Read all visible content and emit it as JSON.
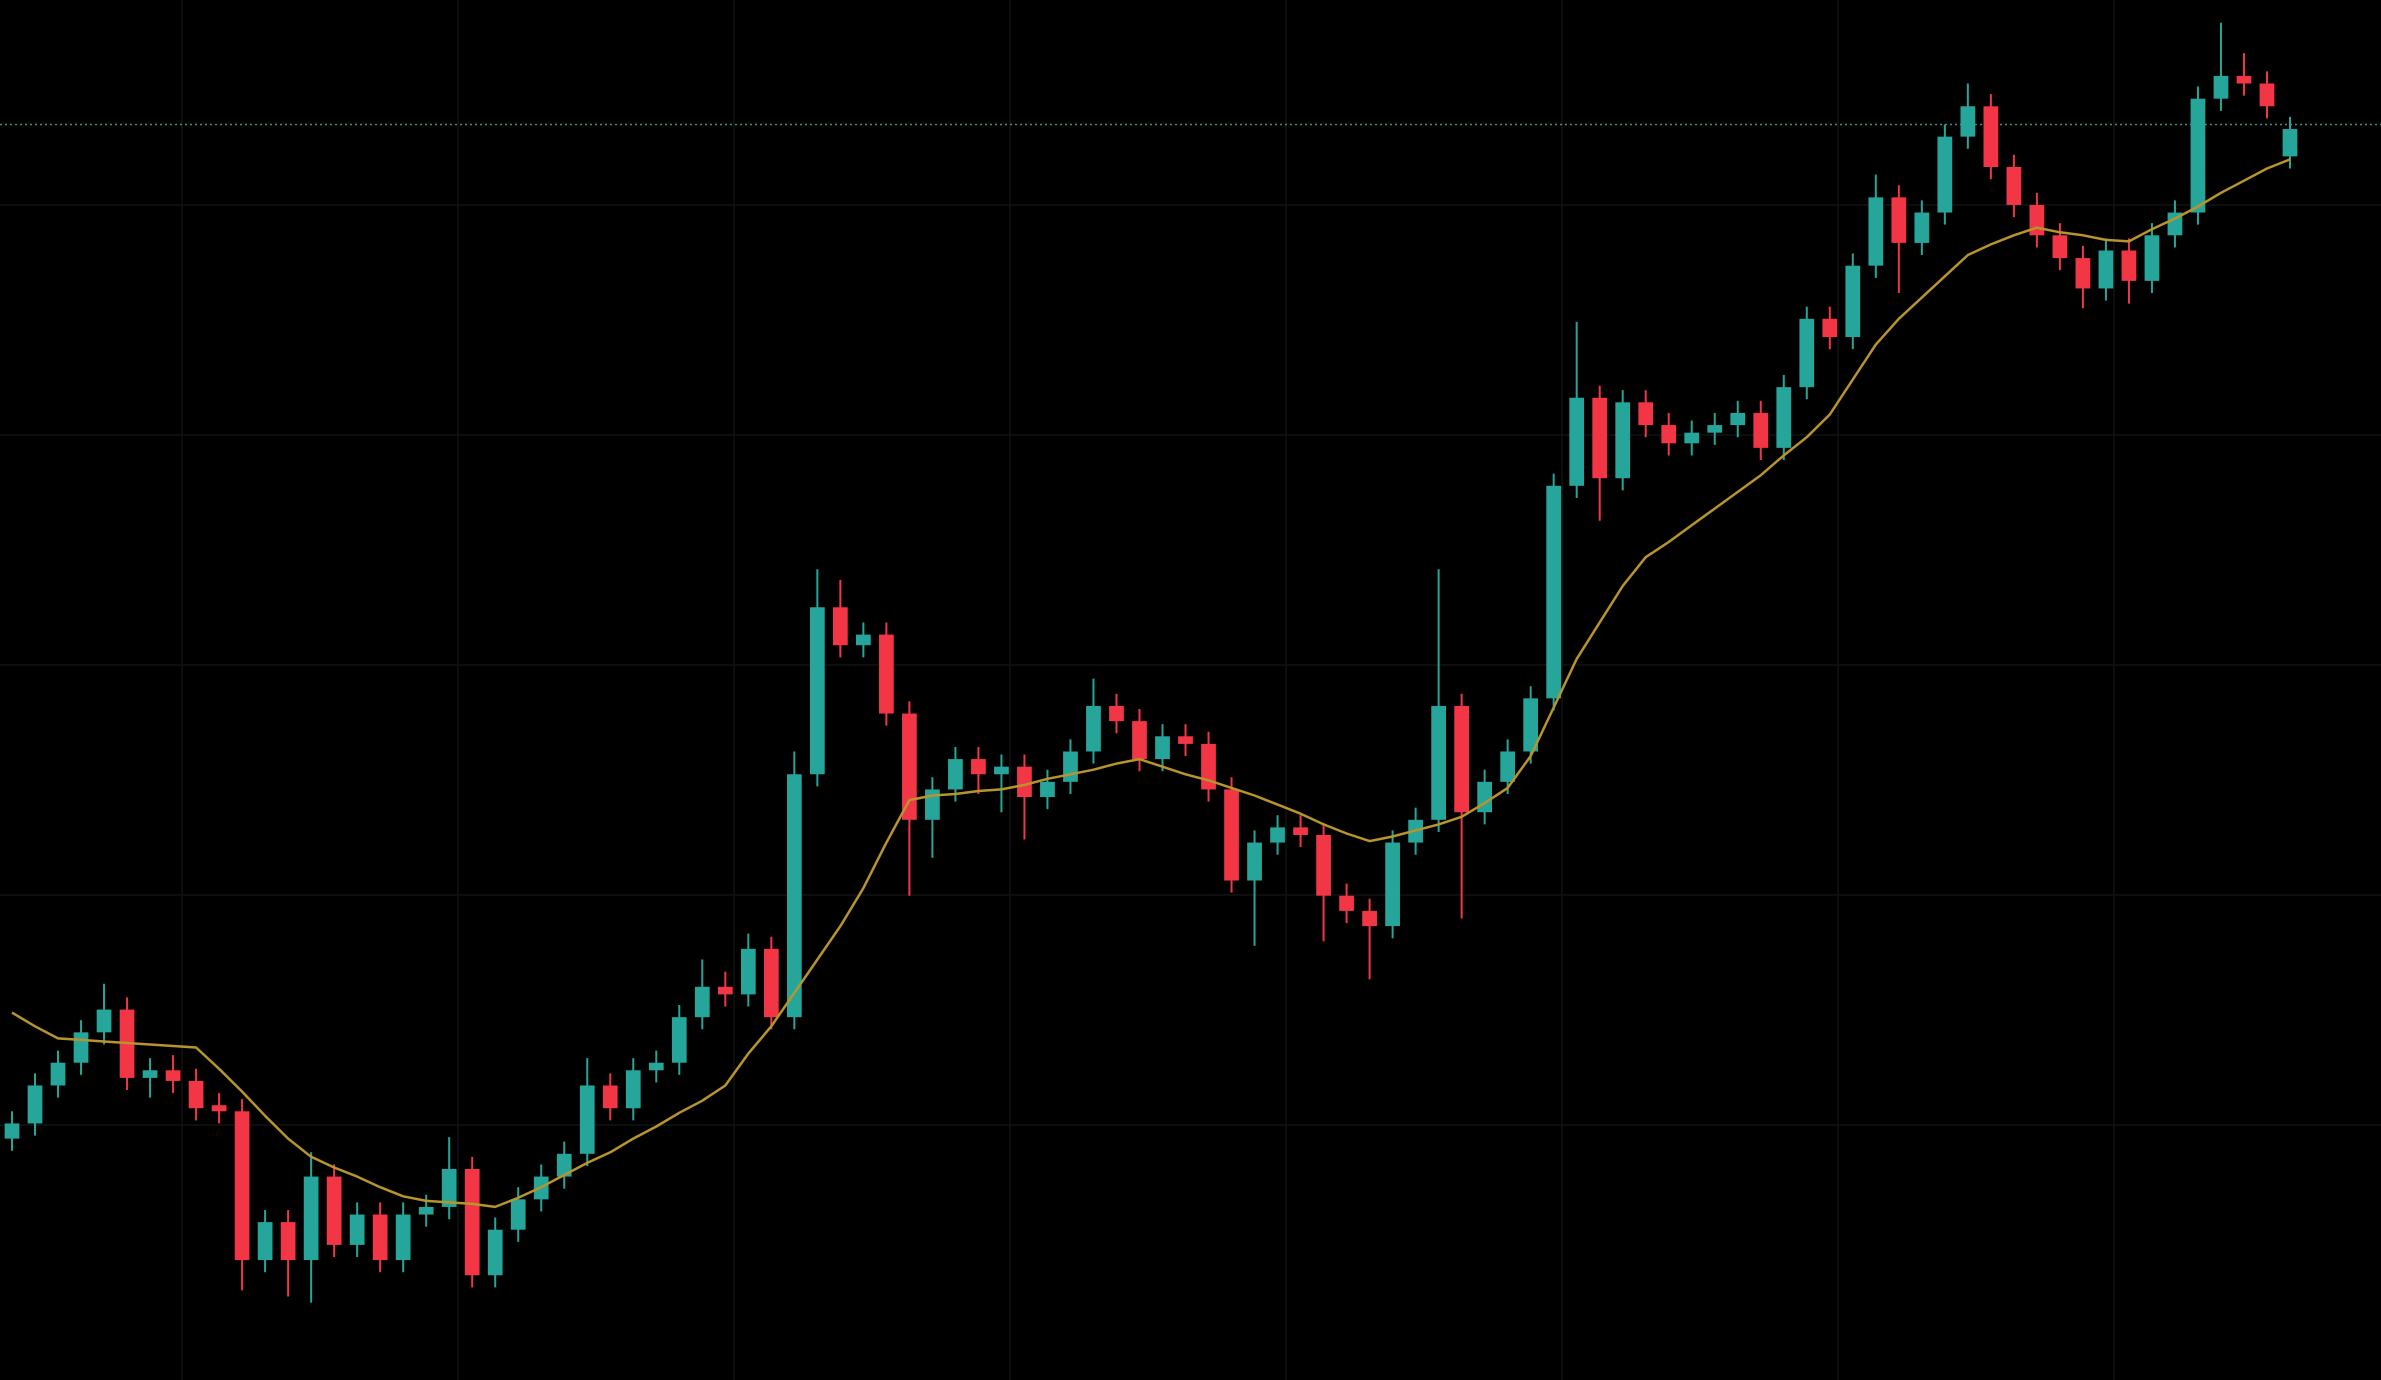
{
  "chart_data": {
    "type": "candlestick",
    "ylim": [
      0,
      909
    ],
    "up_color": "#26a69a",
    "down_color": "#f23645",
    "open": [
      159,
      169,
      194,
      209,
      229,
      244,
      199,
      204,
      197,
      181,
      177,
      79,
      104,
      79,
      134,
      89,
      109,
      79,
      109,
      114,
      139,
      69,
      99,
      119,
      134,
      149,
      194,
      179,
      204,
      209,
      239,
      259,
      254,
      284,
      239,
      399,
      509,
      484,
      491,
      439,
      369,
      389,
      409,
      399,
      404,
      384,
      394,
      414,
      444,
      434,
      409,
      424,
      419,
      389,
      329,
      354,
      364,
      359,
      319,
      309,
      299,
      354,
      369,
      444,
      374,
      394,
      414,
      449,
      589,
      647,
      594,
      644,
      629,
      617,
      624,
      629,
      637,
      614,
      654,
      699,
      687,
      734,
      779,
      749,
      769,
      819,
      839,
      799,
      774,
      754,
      739,
      719,
      744,
      724,
      754,
      769,
      844,
      859,
      854,
      806
    ],
    "high": [
      177,
      202,
      217,
      237,
      261,
      252,
      212,
      214,
      205,
      189,
      185,
      112,
      112,
      150,
      142,
      117,
      117,
      117,
      122,
      160,
      147,
      107,
      127,
      142,
      157,
      212,
      202,
      212,
      217,
      247,
      277,
      269,
      294,
      292,
      414,
      534,
      527,
      499,
      499,
      447,
      397,
      417,
      417,
      412,
      412,
      402,
      422,
      462,
      452,
      442,
      432,
      432,
      427,
      397,
      362,
      372,
      372,
      367,
      327,
      317,
      362,
      377,
      534,
      452,
      402,
      422,
      457,
      597,
      697,
      655,
      652,
      652,
      637,
      632,
      637,
      645,
      645,
      662,
      707,
      707,
      742,
      794,
      787,
      777,
      827,
      854,
      847,
      807,
      782,
      762,
      747,
      752,
      752,
      762,
      777,
      852,
      894,
      874,
      862,
      832
    ],
    "low": [
      151,
      161,
      186,
      201,
      221,
      191,
      186,
      189,
      171,
      169,
      59,
      71,
      55,
      51,
      81,
      81,
      71,
      71,
      101,
      106,
      61,
      61,
      91,
      111,
      126,
      141,
      171,
      171,
      196,
      201,
      231,
      246,
      246,
      231,
      231,
      391,
      476,
      476,
      431,
      319,
      344,
      381,
      386,
      374,
      356,
      376,
      386,
      406,
      426,
      401,
      401,
      411,
      381,
      321,
      286,
      346,
      351,
      289,
      301,
      264,
      291,
      346,
      361,
      304,
      366,
      386,
      406,
      441,
      581,
      566,
      586,
      621,
      609,
      609,
      616,
      621,
      606,
      606,
      646,
      679,
      679,
      726,
      716,
      741,
      761,
      811,
      791,
      766,
      746,
      731,
      706,
      711,
      709,
      716,
      746,
      761,
      836,
      846,
      831,
      798
    ],
    "close": [
      169,
      194,
      209,
      229,
      244,
      199,
      204,
      197,
      179,
      177,
      79,
      104,
      79,
      134,
      89,
      109,
      79,
      109,
      114,
      139,
      69,
      99,
      119,
      134,
      149,
      194,
      179,
      204,
      209,
      239,
      259,
      254,
      284,
      239,
      399,
      509,
      484,
      491,
      439,
      369,
      389,
      409,
      399,
      404,
      384,
      394,
      414,
      444,
      434,
      409,
      424,
      419,
      389,
      329,
      354,
      364,
      359,
      319,
      309,
      299,
      354,
      369,
      444,
      374,
      394,
      414,
      449,
      589,
      647,
      594,
      644,
      629,
      617,
      624,
      629,
      637,
      614,
      654,
      699,
      687,
      734,
      779,
      749,
      769,
      819,
      839,
      799,
      774,
      754,
      739,
      719,
      744,
      724,
      754,
      769,
      844,
      859,
      854,
      839,
      824
    ],
    "moving_average": {
      "color": "#b8942c",
      "values": [
        242,
        233,
        225,
        224,
        223,
        222,
        221,
        220,
        219,
        205,
        190,
        174,
        159,
        147,
        140,
        134,
        127,
        121,
        118,
        117,
        116,
        114,
        120,
        127,
        135,
        143,
        150,
        159,
        167,
        176,
        184,
        194,
        215,
        233,
        255,
        277,
        299,
        324,
        354,
        382,
        385,
        386,
        388,
        389,
        392,
        396,
        399,
        402,
        406,
        409,
        404,
        399,
        395,
        390,
        385,
        379,
        373,
        366,
        360,
        355,
        358,
        362,
        366,
        371,
        380,
        390,
        411,
        443,
        475,
        499,
        523,
        542,
        552,
        563,
        574,
        585,
        596,
        609,
        621,
        636,
        659,
        682,
        699,
        713,
        727,
        741,
        748,
        754,
        759,
        756,
        754,
        751,
        750,
        758,
        765,
        773,
        782,
        790,
        798,
        804
      ]
    },
    "price_line": {
      "color": "#3f8f8a",
      "value": 827
    }
  }
}
